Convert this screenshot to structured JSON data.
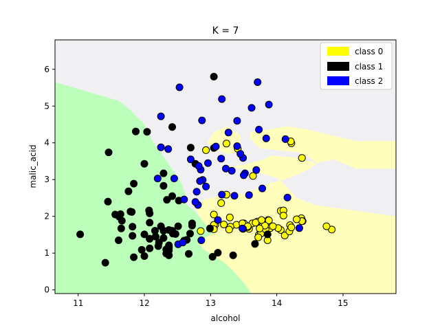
{
  "chart_data": {
    "type": "scatter",
    "title": "K = 7",
    "xlabel": "alcohol",
    "ylabel": "malic_acid",
    "xlim": [
      10.65,
      15.8
    ],
    "ylim": [
      -0.1,
      6.8
    ],
    "xticks": [
      "11",
      "12",
      "13",
      "14",
      "15"
    ],
    "yticks": [
      "0",
      "1",
      "2",
      "3",
      "4",
      "5",
      "6"
    ],
    "legend_position": "top-right",
    "legend": [
      {
        "label": "class 0",
        "color": "#ffff00"
      },
      {
        "label": "class 1",
        "color": "#000000"
      },
      {
        "label": "class 2",
        "color": "#0000ff"
      }
    ],
    "region_colors": {
      "class 0": "#ffffbb",
      "class 1": "#f0f0f3",
      "class 2": "#bbffbb"
    },
    "decision_regions": {
      "class 2": [
        [
          10.65,
          5.65
        ],
        [
          11.6,
          5.15
        ],
        [
          11.75,
          4.95
        ],
        [
          12.0,
          4.5
        ],
        [
          12.12,
          4.05
        ],
        [
          12.3,
          3.6
        ],
        [
          12.45,
          3.2
        ],
        [
          12.55,
          2.95
        ],
        [
          12.62,
          2.6
        ],
        [
          12.62,
          2.35
        ],
        [
          12.75,
          2.15
        ],
        [
          12.85,
          1.95
        ],
        [
          12.95,
          1.72
        ],
        [
          13.05,
          1.55
        ],
        [
          12.8,
          1.3
        ],
        [
          12.9,
          1.1
        ],
        [
          13.05,
          0.92
        ],
        [
          13.2,
          0.75
        ],
        [
          13.35,
          0.5
        ],
        [
          13.5,
          0.2
        ],
        [
          13.62,
          -0.1
        ],
        [
          10.65,
          -0.1
        ]
      ],
      "class 0 band": [
        [
          12.78,
          2.2
        ],
        [
          12.9,
          2.45
        ],
        [
          13.1,
          2.55
        ],
        [
          13.3,
          2.65
        ],
        [
          13.5,
          2.6
        ],
        [
          13.9,
          2.9
        ],
        [
          14.2,
          3.05
        ],
        [
          14.5,
          3.3
        ],
        [
          14.6,
          3.45
        ],
        [
          14.3,
          3.6
        ],
        [
          13.9,
          3.65
        ],
        [
          13.8,
          3.55
        ],
        [
          13.5,
          3.4
        ],
        [
          13.3,
          3.35
        ],
        [
          13.5,
          3.3
        ],
        [
          13.7,
          3.2
        ],
        [
          14.0,
          3.05
        ],
        [
          14.1,
          2.9
        ],
        [
          14.2,
          2.7
        ],
        [
          14.3,
          2.5
        ],
        [
          14.6,
          2.3
        ],
        [
          15.0,
          2.2
        ],
        [
          15.8,
          2.0
        ],
        [
          15.8,
          -0.1
        ],
        [
          13.62,
          -0.1
        ],
        [
          13.5,
          0.2
        ],
        [
          13.35,
          0.5
        ],
        [
          13.2,
          0.75
        ],
        [
          13.05,
          0.92
        ],
        [
          12.9,
          1.1
        ],
        [
          12.8,
          1.3
        ],
        [
          13.05,
          1.55
        ],
        [
          12.95,
          1.72
        ],
        [
          12.85,
          1.95
        ]
      ],
      "class 0 upper": [
        [
          13.05,
          4.3
        ],
        [
          13.25,
          4.45
        ],
        [
          13.45,
          4.2
        ],
        [
          13.45,
          3.75
        ],
        [
          13.25,
          3.7
        ],
        [
          13.05,
          3.85
        ],
        [
          12.95,
          4.0
        ]
      ],
      "class 0 right": [
        [
          13.6,
          4.3
        ],
        [
          13.85,
          4.35
        ],
        [
          14.15,
          4.45
        ],
        [
          14.5,
          4.35
        ],
        [
          14.95,
          4.15
        ],
        [
          15.2,
          4.05
        ],
        [
          15.8,
          4.05
        ],
        [
          15.8,
          3.3
        ],
        [
          15.2,
          3.3
        ],
        [
          14.85,
          3.55
        ],
        [
          14.6,
          3.45
        ],
        [
          14.5,
          3.6
        ],
        [
          14.3,
          3.75
        ],
        [
          14.0,
          3.8
        ],
        [
          13.75,
          3.85
        ],
        [
          13.6,
          4.1
        ]
      ]
    },
    "series": [
      {
        "name": "class 0",
        "color": "#ffff00",
        "points": [
          [
            13.2,
            1.78
          ],
          [
            13.16,
            2.36
          ],
          [
            14.37,
            1.95
          ],
          [
            13.24,
            2.59
          ],
          [
            14.2,
            1.76
          ],
          [
            14.39,
            1.87
          ],
          [
            14.06,
            2.15
          ],
          [
            14.83,
            1.64
          ],
          [
            13.86,
            1.35
          ],
          [
            14.1,
            2.16
          ],
          [
            14.12,
            1.48
          ],
          [
            13.75,
            1.73
          ],
          [
            14.75,
            1.73
          ],
          [
            14.38,
            1.87
          ],
          [
            13.63,
            1.81
          ],
          [
            14.3,
            1.92
          ],
          [
            13.83,
            1.57
          ],
          [
            14.19,
            1.59
          ],
          [
            13.64,
            3.1
          ],
          [
            14.06,
            1.63
          ],
          [
            12.93,
            3.8
          ],
          [
            13.71,
            1.86
          ],
          [
            12.85,
            1.6
          ],
          [
            13.5,
            1.81
          ],
          [
            13.05,
            2.05
          ],
          [
            13.39,
            1.77
          ],
          [
            13.3,
            1.72
          ],
          [
            13.87,
            1.9
          ],
          [
            14.02,
            1.68
          ],
          [
            13.73,
            1.5
          ],
          [
            13.58,
            1.66
          ],
          [
            13.68,
            1.83
          ],
          [
            13.76,
            1.53
          ],
          [
            13.51,
            1.8
          ],
          [
            13.48,
            1.81
          ],
          [
            13.28,
            1.64
          ],
          [
            13.05,
            1.73
          ],
          [
            13.07,
            1.77
          ],
          [
            14.22,
            3.99
          ],
          [
            13.56,
            1.71
          ],
          [
            13.41,
            3.84
          ],
          [
            13.88,
            1.89
          ],
          [
            13.24,
            3.98
          ],
          [
            13.05,
            1.77
          ],
          [
            14.21,
            4.04
          ],
          [
            14.38,
            3.59
          ],
          [
            13.9,
            1.68
          ],
          [
            14.1,
            2.02
          ],
          [
            13.94,
            1.73
          ],
          [
            13.05,
            1.65
          ],
          [
            13.83,
            1.65
          ],
          [
            13.82,
            1.75
          ],
          [
            13.77,
            1.9
          ],
          [
            13.74,
            1.67
          ],
          [
            13.56,
            1.73
          ],
          [
            14.22,
            1.7
          ],
          [
            13.29,
            1.97
          ],
          [
            13.72,
            1.43
          ]
        ]
      },
      {
        "name": "class 1",
        "color": "#000000",
        "points": [
          [
            12.37,
            0.94
          ],
          [
            12.33,
            1.1
          ],
          [
            12.64,
            1.36
          ],
          [
            13.67,
            1.25
          ],
          [
            12.37,
            1.13
          ],
          [
            12.17,
            1.45
          ],
          [
            12.37,
            1.21
          ],
          [
            13.11,
            1.01
          ],
          [
            12.37,
            1.17
          ],
          [
            13.34,
            0.94
          ],
          [
            12.21,
            1.19
          ],
          [
            12.29,
            1.61
          ],
          [
            13.86,
            1.51
          ],
          [
            13.49,
            1.66
          ],
          [
            12.99,
            1.67
          ],
          [
            11.96,
            1.09
          ],
          [
            11.66,
            1.88
          ],
          [
            13.03,
            0.9
          ],
          [
            11.84,
            2.89
          ],
          [
            12.33,
            0.99
          ],
          [
            12.7,
            3.87
          ],
          [
            12.0,
            0.92
          ],
          [
            12.72,
            1.81
          ],
          [
            12.08,
            1.13
          ],
          [
            13.05,
            3.86
          ],
          [
            11.84,
            0.89
          ],
          [
            12.67,
            0.98
          ],
          [
            12.16,
            1.61
          ],
          [
            11.65,
            1.67
          ],
          [
            11.64,
            2.06
          ],
          [
            12.08,
            1.83
          ],
          [
            12.08,
            1.39
          ],
          [
            12.0,
            1.51
          ],
          [
            12.69,
            1.53
          ],
          [
            12.29,
            2.83
          ],
          [
            11.62,
            1.99
          ],
          [
            12.47,
            1.52
          ],
          [
            11.81,
            2.12
          ],
          [
            12.29,
            1.41
          ],
          [
            12.37,
            1.07
          ],
          [
            12.29,
            3.17
          ],
          [
            12.08,
            2.08
          ],
          [
            12.6,
            1.34
          ],
          [
            12.34,
            2.45
          ],
          [
            11.82,
            1.72
          ],
          [
            12.51,
            1.73
          ],
          [
            12.42,
            2.55
          ],
          [
            12.25,
            1.73
          ],
          [
            12.72,
            1.75
          ],
          [
            12.22,
            1.29
          ],
          [
            11.61,
            1.35
          ],
          [
            11.46,
            3.74
          ],
          [
            12.52,
            2.43
          ],
          [
            11.76,
            2.68
          ],
          [
            11.41,
            0.74
          ],
          [
            12.08,
            1.39
          ],
          [
            11.03,
            1.51
          ],
          [
            11.82,
            1.47
          ],
          [
            12.42,
            1.61
          ],
          [
            12.77,
            3.43
          ],
          [
            12.0,
            3.43
          ],
          [
            11.45,
            2.4
          ],
          [
            11.56,
            2.05
          ],
          [
            12.42,
            4.43
          ],
          [
            13.05,
            5.8
          ],
          [
            11.87,
            4.31
          ],
          [
            12.07,
            2.16
          ],
          [
            12.43,
            1.53
          ],
          [
            11.79,
            2.13
          ],
          [
            12.37,
            1.63
          ],
          [
            12.04,
            4.3
          ]
        ]
      },
      {
        "name": "class 2",
        "color": "#0000ff",
        "points": [
          [
            12.86,
            1.35
          ],
          [
            12.88,
            2.99
          ],
          [
            12.81,
            2.31
          ],
          [
            12.7,
            3.55
          ],
          [
            12.51,
            1.24
          ],
          [
            12.6,
            2.46
          ],
          [
            12.25,
            4.72
          ],
          [
            12.53,
            5.51
          ],
          [
            13.49,
            3.59
          ],
          [
            12.84,
            2.96
          ],
          [
            12.93,
            2.81
          ],
          [
            13.36,
            2.56
          ],
          [
            13.52,
            3.17
          ],
          [
            13.62,
            4.95
          ],
          [
            12.25,
            3.88
          ],
          [
            13.16,
            3.57
          ],
          [
            13.88,
            5.04
          ],
          [
            12.87,
            4.61
          ],
          [
            13.32,
            3.24
          ],
          [
            13.08,
            3.9
          ],
          [
            13.5,
            3.12
          ],
          [
            12.79,
            2.67
          ],
          [
            13.11,
            1.9
          ],
          [
            13.23,
            3.3
          ],
          [
            12.58,
            1.29
          ],
          [
            13.17,
            5.19
          ],
          [
            13.84,
            4.12
          ],
          [
            12.45,
            3.03
          ],
          [
            14.34,
            1.68
          ],
          [
            13.48,
            1.67
          ],
          [
            12.36,
            3.83
          ],
          [
            13.69,
            3.26
          ],
          [
            12.85,
            3.27
          ],
          [
            12.96,
            3.45
          ],
          [
            13.78,
            2.76
          ],
          [
            13.73,
            4.36
          ],
          [
            13.45,
            3.7
          ],
          [
            12.82,
            3.37
          ],
          [
            13.58,
            2.58
          ],
          [
            13.4,
            4.6
          ],
          [
            12.2,
            3.03
          ],
          [
            12.77,
            2.39
          ],
          [
            14.16,
            2.51
          ],
          [
            13.71,
            5.65
          ],
          [
            13.4,
            3.91
          ],
          [
            13.27,
            4.28
          ],
          [
            13.17,
            2.59
          ],
          [
            14.13,
            4.1
          ]
        ]
      }
    ]
  }
}
